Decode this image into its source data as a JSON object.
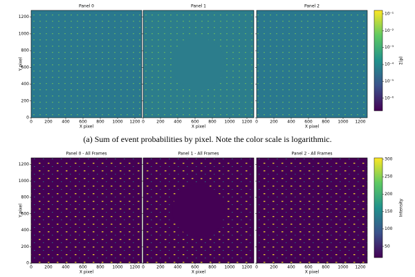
{
  "caption": "(a) Sum of event probabilities by pixel. Note the color scale is logarithmic.",
  "chart_data": [
    {
      "type": "heatmap",
      "panels": [
        "Panel 0",
        "Panel 1",
        "Panel 2"
      ],
      "xlabel": "X pixel",
      "ylabel": "Y pixel",
      "xlim": [
        0,
        1280
      ],
      "ylim": [
        0,
        1280
      ],
      "xticks": [
        0,
        200,
        400,
        600,
        800,
        1000,
        1200
      ],
      "yticks": [
        0,
        200,
        400,
        600,
        800,
        1000,
        1200
      ],
      "colorbar": {
        "label": "Σ(p)",
        "scale": "log",
        "lim": [
          1.8e-07,
          0.16
        ],
        "ticks": [
          {
            "value": 1e-06,
            "label": "10⁻⁶"
          },
          {
            "value": 1e-05,
            "label": "10⁻⁵"
          },
          {
            "value": 0.0001,
            "label": "10⁻⁴"
          },
          {
            "value": 0.001,
            "label": "10⁻³"
          },
          {
            "value": 0.01,
            "label": "10⁻²"
          },
          {
            "value": 0.1,
            "label": "10⁻¹"
          }
        ]
      },
      "colormap": [
        "#440154",
        "#3b528b",
        "#21918c",
        "#5ec962",
        "#fde725"
      ],
      "background": [
        "#2a788e",
        "#2c7d8c",
        "#2a788e"
      ]
    },
    {
      "type": "heatmap",
      "panels": [
        "Panel 0 - All Frames",
        "Panel 1 - All Frames",
        "Panel 2 - All Frames"
      ],
      "xlabel": "X pixel",
      "ylabel": "Y pixel",
      "xlim": [
        0,
        1280
      ],
      "ylim": [
        0,
        1280
      ],
      "xticks": [
        0,
        200,
        400,
        600,
        800,
        1000,
        1200
      ],
      "yticks": [
        0,
        200,
        400,
        600,
        800,
        1000,
        1200
      ],
      "colorbar": {
        "label": "Intensity",
        "scale": "linear",
        "lim": [
          18,
          304
        ],
        "ticks": [
          50,
          100,
          150,
          200,
          250,
          300
        ]
      },
      "colormap": [
        "#440154",
        "#3b528b",
        "#21918c",
        "#5ec962",
        "#fde725"
      ],
      "background": [
        "#440154",
        "#440154",
        "#440154"
      ]
    }
  ]
}
